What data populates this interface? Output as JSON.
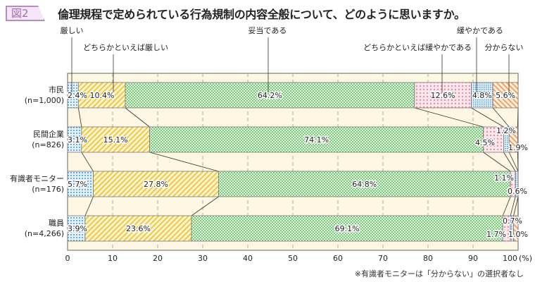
{
  "header": {
    "figure_label": "図2",
    "title": "倫理規程で定められている行為規制の内容全般について、どのように思いますか。"
  },
  "footnote": "※有識者モニターは「分からない」の選択者なし",
  "colors": {
    "background": "#fdf7e3",
    "厳しい": "#6aaee0",
    "どちらかといえば厳しい": "#f5c43a",
    "妥当である": "#7cc87c",
    "どちらかといえば緩やかである": "#f08aa0",
    "緩やかである": "#4a9ad8",
    "分からない": "#f4a060"
  },
  "chart_data": {
    "type": "bar",
    "orientation": "horizontal",
    "stacked": true,
    "categories": [
      {
        "name": "市民",
        "n": "(n=1,000)"
      },
      {
        "name": "民間企業",
        "n": "(n=826)"
      },
      {
        "name": "有識者モニター",
        "n": "(n=176)"
      },
      {
        "name": "職員",
        "n": "(n=4,266)"
      }
    ],
    "series": [
      {
        "name": "厳しい",
        "values": [
          2.4,
          3.1,
          5.7,
          3.9
        ]
      },
      {
        "name": "どちらかといえば厳しい",
        "values": [
          10.4,
          15.1,
          27.8,
          23.6
        ]
      },
      {
        "name": "妥当である",
        "values": [
          64.2,
          74.1,
          64.8,
          69.1
        ]
      },
      {
        "name": "どちらかといえば緩やかである",
        "values": [
          12.6,
          4.5,
          1.1,
          1.7
        ]
      },
      {
        "name": "緩やかである",
        "values": [
          4.8,
          1.2,
          0.6,
          0.7
        ]
      },
      {
        "name": "分からない",
        "values": [
          5.6,
          1.9,
          null,
          1.0
        ]
      }
    ],
    "xlim": [
      0,
      100
    ],
    "xticks": [
      0,
      10,
      20,
      30,
      40,
      50,
      60,
      70,
      80,
      90,
      100
    ],
    "xunit": "(%)",
    "grid": true,
    "legend": "top, callout labels"
  }
}
